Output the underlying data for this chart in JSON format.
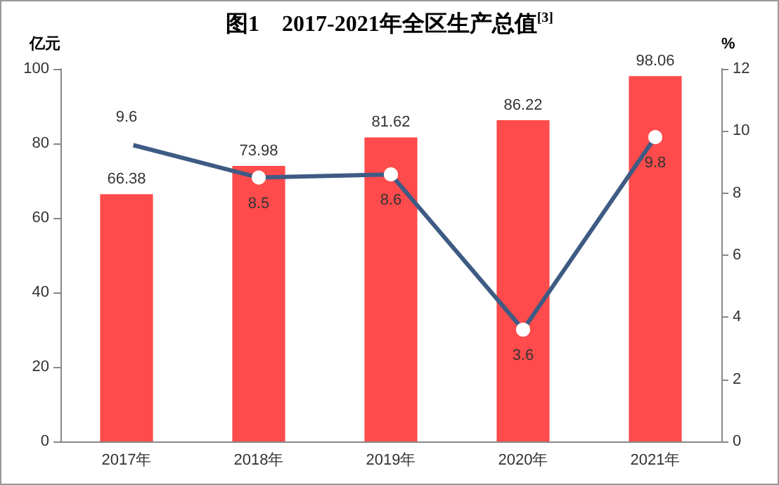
{
  "chart_data": {
    "type": "bar",
    "title": "图1    2017-2021年全区生产总值$^{[3]}$",
    "categories": [
      "2017年",
      "2018年",
      "2019年",
      "2020年",
      "2021年"
    ],
    "ylabel": "亿元",
    "y2label": "%",
    "series": [
      {
        "color": "#ff4b4b",
        "values": [
          66.38,
          73.98,
          81.62,
          86.22,
          98.06
        ]
      },
      {
        "type": "line",
        "axis": "y2",
        "color": "#3e5b84",
        "values": [
          9.6,
          8.5,
          8.6,
          3.6,
          9.8
        ]
      }
    ],
    "ylim": [
      0,
      100
    ],
    "yticks": [
      0,
      20,
      40,
      60,
      80,
      100
    ],
    "y2lim": [
      0,
      12
    ],
    "y2ticks": [
      0,
      2,
      4,
      6,
      8,
      10,
      12
    ],
    "data_labels": true,
    "grid": false,
    "marker": "circle"
  }
}
